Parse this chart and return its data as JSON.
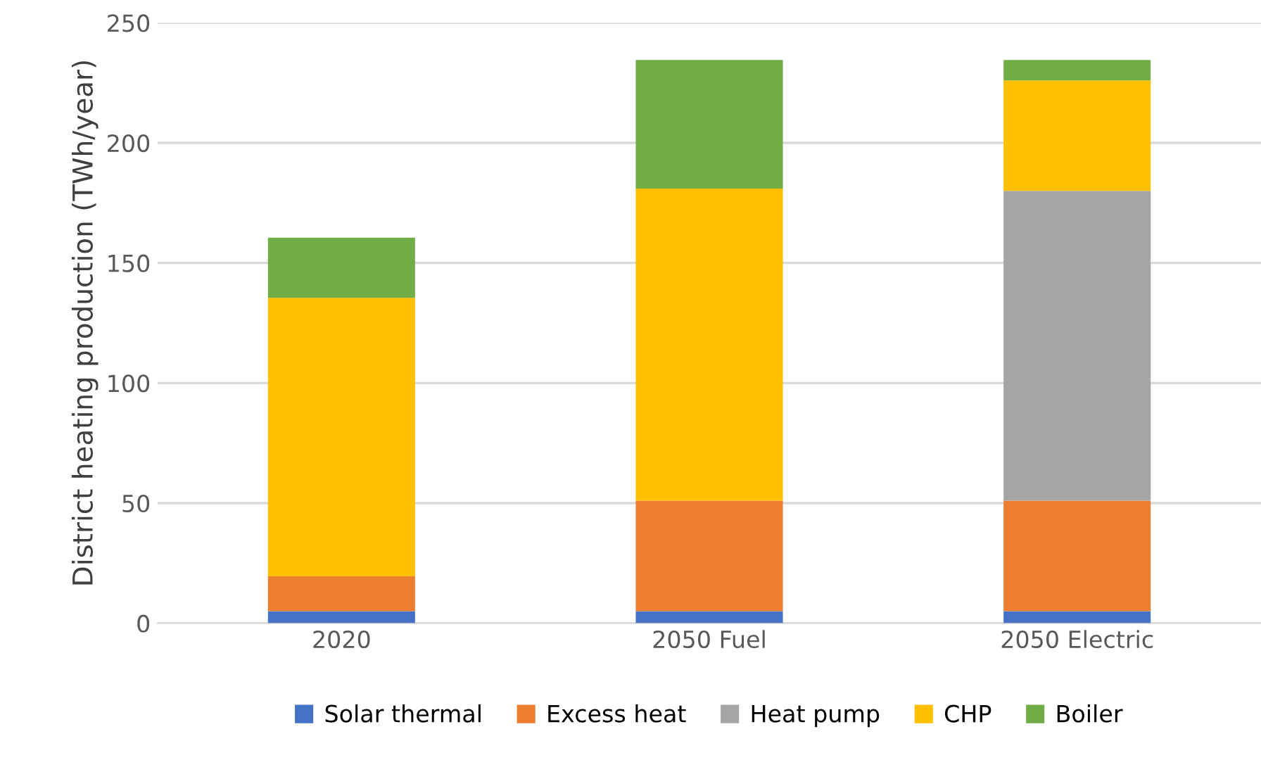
{
  "chart_data": {
    "type": "bar",
    "stacked": true,
    "ylabel": "District heating production (TWh/year)",
    "categories": [
      "2020",
      "2050 Fuel",
      "2050 Electric"
    ],
    "series": [
      {
        "name": "Solar thermal",
        "color": "#4472c4",
        "values": [
          5,
          5,
          5
        ]
      },
      {
        "name": "Excess heat",
        "color": "#ed7d31",
        "values": [
          14.5,
          46,
          46
        ]
      },
      {
        "name": "Heat pump",
        "color": "#a5a5a5",
        "values": [
          null,
          null,
          129
        ]
      },
      {
        "name": "CHP",
        "color": "#ffc000",
        "values": [
          116,
          130,
          46
        ]
      },
      {
        "name": "Boiler",
        "color": "#70ad47",
        "values": [
          25,
          53.5,
          8.5
        ]
      }
    ],
    "ylim": [
      0,
      250
    ],
    "yticks": [
      0,
      50,
      100,
      150,
      200,
      250
    ],
    "grid": "y",
    "legend": "bottom"
  }
}
